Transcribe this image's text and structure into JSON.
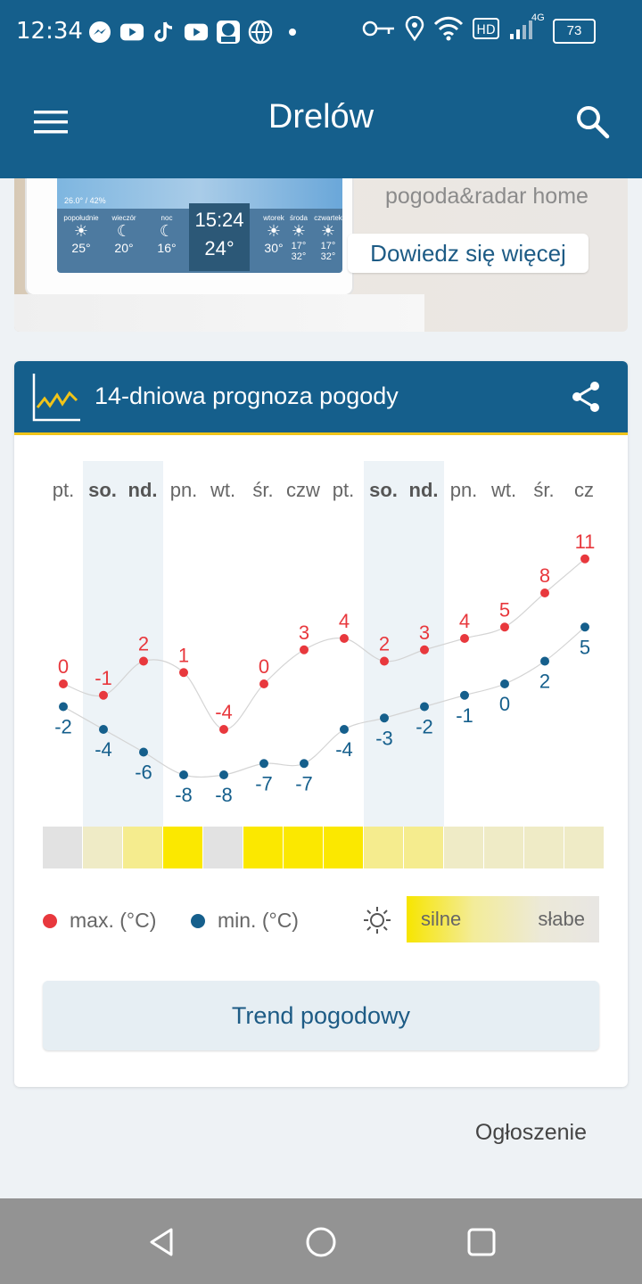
{
  "status_bar": {
    "time": "12:34",
    "network": "4G",
    "battery": "73"
  },
  "app_bar": {
    "title": "Drelów"
  },
  "banner": {
    "brand": "pogoda&radar home",
    "cta": "Dowiedz się więcej",
    "screen": {
      "header": "26.0° / 42%",
      "clock": "15:24",
      "temp": "24°",
      "cells": [
        {
          "day": "popołudnie",
          "temp": "25°"
        },
        {
          "day": "wieczór",
          "temp": "20°"
        },
        {
          "day": "noc",
          "temp": "16°"
        },
        {
          "day": "wtorek",
          "temp": "30°"
        },
        {
          "day": "środa",
          "temp": "17° 32°"
        },
        {
          "day": "czwartek",
          "temp": "17° 32°"
        }
      ]
    }
  },
  "forecast_card": {
    "title": "14-dniowa prognoza pogody",
    "days": [
      "pt.",
      "so.",
      "nd.",
      "pn.",
      "wt.",
      "śr.",
      "czw",
      "pt.",
      "so.",
      "nd.",
      "pn.",
      "wt.",
      "śr.",
      "cz"
    ],
    "weekend": [
      false,
      true,
      true,
      false,
      false,
      false,
      false,
      false,
      true,
      true,
      false,
      false,
      false,
      false
    ],
    "legend": {
      "max_label": "max. (°C)",
      "min_label": "min. (°C)",
      "strong": "silne",
      "weak": "słabe"
    },
    "trend_button": "Trend pogodowy"
  },
  "chart_data": {
    "type": "line",
    "title": "14-dniowa prognoza pogody",
    "categories": [
      "pt.",
      "so.",
      "nd.",
      "pn.",
      "wt.",
      "śr.",
      "czw",
      "pt.",
      "so.",
      "nd.",
      "pn.",
      "wt.",
      "śr.",
      "cz"
    ],
    "series": [
      {
        "name": "max. (°C)",
        "color": "#e8383d",
        "values": [
          0,
          -1,
          2,
          1,
          -4,
          0,
          3,
          4,
          2,
          3,
          4,
          5,
          8,
          11
        ]
      },
      {
        "name": "min. (°C)",
        "color": "#155f8c",
        "values": [
          -2,
          -4,
          -6,
          -8,
          -8,
          -7,
          -7,
          -4,
          -3,
          -2,
          -1,
          0,
          2,
          5
        ]
      }
    ],
    "sun_intensity": {
      "label_strong": "silne",
      "label_weak": "słabe",
      "values": [
        0,
        0.35,
        0.6,
        1.0,
        0,
        1.0,
        1.0,
        1.0,
        0.55,
        0.55,
        0.3,
        0.3,
        0.3,
        0.3
      ]
    },
    "ylim": [
      -9,
      12
    ]
  },
  "ad": {
    "label": "Ogłoszenie"
  },
  "colors": {
    "primary": "#155f8c",
    "accent": "#f0c419",
    "max": "#e8383d",
    "min": "#155f8c"
  }
}
